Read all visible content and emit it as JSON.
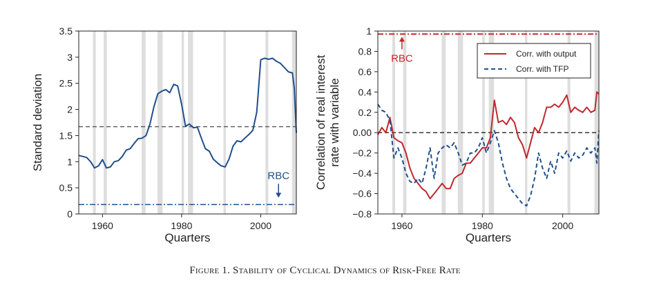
{
  "caption": "Figure 1. Stability of Cyclical Dynamics of Risk-Free Rate",
  "colors": {
    "blue": "#1f4e8c",
    "red": "#c0272d",
    "recession": "#dedede",
    "ref": "#555555"
  },
  "chart_data": [
    {
      "type": "line",
      "xlabel": "Quarters",
      "ylabel": "Standard deviation",
      "xlim": [
        1954,
        2009
      ],
      "ylim": [
        0,
        3.5
      ],
      "xticks": [
        1960,
        1980,
        2000
      ],
      "yticks": [
        0,
        0.5,
        1,
        1.5,
        2,
        2.5,
        3,
        3.5
      ],
      "ytick_labels": [
        "0",
        "0.5",
        "1",
        "1.5",
        "2",
        "2.5",
        "3",
        "3.5"
      ],
      "recessions": [
        [
          1957.6,
          1958.3
        ],
        [
          1960.3,
          1961.1
        ],
        [
          1969.9,
          1970.9
        ],
        [
          1973.9,
          1975.2
        ],
        [
          1980.0,
          1980.6
        ],
        [
          1981.6,
          1982.9
        ],
        [
          1990.6,
          1991.2
        ],
        [
          2001.2,
          2001.9
        ],
        [
          2007.9,
          2009.0
        ]
      ],
      "hlines": [
        {
          "y": 1.67,
          "style": "dashed",
          "color": "#555555"
        },
        {
          "y": 0.18,
          "style": "dashdot",
          "color": "#1f4e8c",
          "label": "RBC",
          "label_x": 2004.5
        }
      ],
      "series": [
        {
          "color": "#1f4e8c",
          "x": [
            1954,
            1955,
            1956,
            1957,
            1958,
            1959,
            1960,
            1961,
            1962,
            1963,
            1964,
            1965,
            1966,
            1967,
            1968,
            1969,
            1970,
            1971,
            1972,
            1973,
            1974,
            1975,
            1976,
            1977,
            1978,
            1979,
            1980,
            1981,
            1982,
            1983,
            1984,
            1985,
            1986,
            1987,
            1988,
            1989,
            1990,
            1991,
            1992,
            1993,
            1994,
            1995,
            1996,
            1997,
            1998,
            1999,
            2000,
            2001,
            2002,
            2003,
            2004,
            2005,
            2006,
            2007,
            2008,
            2008.5,
            2009
          ],
          "y": [
            1.12,
            1.1,
            1.08,
            1.0,
            0.88,
            0.92,
            1.04,
            0.88,
            0.9,
            1.0,
            1.02,
            1.1,
            1.22,
            1.25,
            1.35,
            1.44,
            1.45,
            1.5,
            1.72,
            2.05,
            2.3,
            2.35,
            2.38,
            2.32,
            2.48,
            2.45,
            2.1,
            1.68,
            1.72,
            1.65,
            1.66,
            1.45,
            1.25,
            1.2,
            1.05,
            0.98,
            0.92,
            0.9,
            1.05,
            1.3,
            1.4,
            1.38,
            1.45,
            1.52,
            1.6,
            1.95,
            2.95,
            2.98,
            2.96,
            2.98,
            2.92,
            2.88,
            2.8,
            2.72,
            2.7,
            2.4,
            1.55
          ]
        }
      ]
    },
    {
      "type": "line",
      "xlabel": "Quarters",
      "ylabel": "Correlation of real interest rate with variable",
      "xlim": [
        1954,
        2009
      ],
      "ylim": [
        -0.8,
        1
      ],
      "xticks": [
        1960,
        1980,
        2000
      ],
      "yticks": [
        -0.8,
        -0.6,
        -0.4,
        -0.2,
        0,
        0.2,
        0.4,
        0.6,
        0.8,
        1
      ],
      "ytick_labels": [
        "−0.8",
        "−0.6",
        "−0.4",
        "−0.2",
        "0.00",
        "0.2",
        "0.4",
        "0.6",
        "0.8",
        "1"
      ],
      "recessions": [
        [
          1957.6,
          1958.3
        ],
        [
          1960.3,
          1961.1
        ],
        [
          1969.9,
          1970.9
        ],
        [
          1973.9,
          1975.2
        ],
        [
          1980.0,
          1980.6
        ],
        [
          1981.6,
          1982.9
        ],
        [
          1990.6,
          1991.2
        ],
        [
          2001.2,
          2001.9
        ],
        [
          2007.9,
          2009.0
        ]
      ],
      "hlines": [
        {
          "y": 0,
          "style": "dashed",
          "color": "#222222"
        },
        {
          "y": 0.97,
          "style": "dashdot",
          "color": "#c0272d",
          "label": "RBC",
          "label_x": 1960
        }
      ],
      "legend": {
        "placement": "top-right"
      },
      "series": [
        {
          "name": "Corr. with output",
          "color": "#c0272d",
          "style": "solid",
          "x": [
            1954,
            1955,
            1956,
            1957,
            1958,
            1959,
            1960,
            1961,
            1962,
            1963,
            1964,
            1965,
            1966,
            1967,
            1968,
            1969,
            1970,
            1971,
            1972,
            1973,
            1974,
            1975,
            1976,
            1977,
            1978,
            1979,
            1980,
            1981,
            1982,
            1983,
            1984,
            1985,
            1986,
            1987,
            1988,
            1989,
            1990,
            1991,
            1992,
            1993,
            1994,
            1995,
            1996,
            1997,
            1998,
            1999,
            2000,
            2001,
            2002,
            2003,
            2004,
            2005,
            2006,
            2007,
            2008,
            2008.5,
            2009
          ],
          "y": [
            -0.02,
            0.05,
            0.0,
            0.15,
            -0.05,
            -0.08,
            -0.1,
            -0.2,
            -0.35,
            -0.45,
            -0.5,
            -0.55,
            -0.58,
            -0.65,
            -0.6,
            -0.55,
            -0.5,
            -0.55,
            -0.55,
            -0.45,
            -0.42,
            -0.4,
            -0.3,
            -0.3,
            -0.25,
            -0.2,
            -0.15,
            -0.15,
            -0.05,
            0.32,
            0.1,
            0.12,
            0.08,
            0.15,
            0.1,
            -0.05,
            -0.12,
            -0.25,
            -0.1,
            0.05,
            0.0,
            0.1,
            0.25,
            0.25,
            0.28,
            0.25,
            0.3,
            0.37,
            0.2,
            0.25,
            0.22,
            0.2,
            0.25,
            0.2,
            0.22,
            0.4,
            0.38
          ]
        },
        {
          "name": "Corr. with TFP",
          "color": "#1f4e8c",
          "style": "dashed",
          "x": [
            1954,
            1955,
            1956,
            1957,
            1958,
            1959,
            1960,
            1961,
            1962,
            1963,
            1964,
            1965,
            1966,
            1967,
            1968,
            1969,
            1970,
            1971,
            1972,
            1973,
            1974,
            1975,
            1976,
            1977,
            1978,
            1979,
            1980,
            1981,
            1982,
            1983,
            1984,
            1985,
            1986,
            1987,
            1988,
            1989,
            1990,
            1991,
            1992,
            1993,
            1994,
            1995,
            1996,
            1997,
            1998,
            1999,
            2000,
            2001,
            2002,
            2003,
            2004,
            2005,
            2006,
            2007,
            2008,
            2008.5,
            2009
          ],
          "y": [
            0.28,
            0.22,
            0.2,
            0.12,
            -0.25,
            -0.15,
            -0.25,
            -0.4,
            -0.48,
            -0.5,
            -0.45,
            -0.5,
            -0.35,
            -0.15,
            -0.45,
            -0.2,
            -0.15,
            -0.12,
            -0.15,
            -0.1,
            -0.2,
            -0.32,
            -0.3,
            -0.2,
            -0.2,
            -0.15,
            -0.05,
            -0.2,
            -0.1,
            0.02,
            -0.1,
            -0.3,
            -0.45,
            -0.55,
            -0.6,
            -0.65,
            -0.7,
            -0.72,
            -0.62,
            -0.45,
            -0.2,
            -0.35,
            -0.45,
            -0.28,
            -0.4,
            -0.2,
            -0.25,
            -0.18,
            -0.28,
            -0.2,
            -0.25,
            -0.22,
            -0.15,
            -0.2,
            -0.15,
            -0.3,
            0.02
          ]
        }
      ]
    }
  ]
}
